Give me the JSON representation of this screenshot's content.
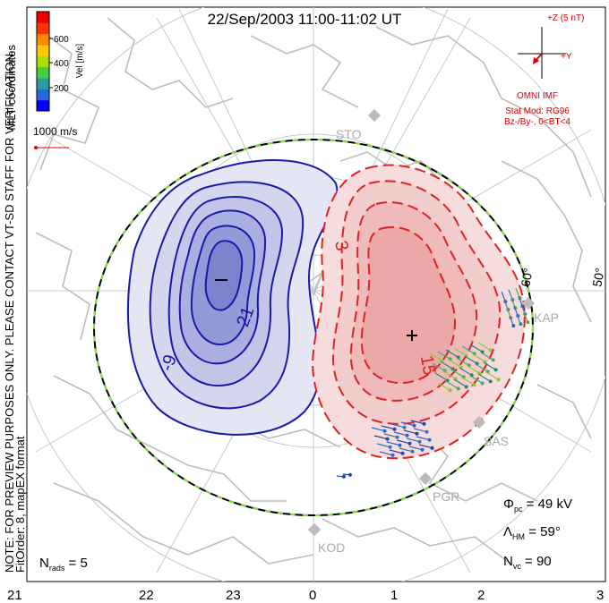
{
  "title": "22/Sep/2003 11:00-11:02 UT",
  "coords_label": "MLT coordinates",
  "preview_note": "NOTE: FOR PREVIEW PURPOSES ONLY. PLEASE CONTACT VT-SD STAFF FOR VERIFICATION.",
  "fit_note": "FitOrder: 8, mapEX format",
  "colorbar": {
    "label": "Vel [m/s]",
    "ticks": [
      "600",
      "400",
      "200"
    ],
    "colors": [
      "#0000ff",
      "#2a6ad8",
      "#2aa098",
      "#44cc44",
      "#aadd00",
      "#ffcc00",
      "#ff8800",
      "#ff3300",
      "#ee0000"
    ]
  },
  "scale": {
    "label": "1000 m/s",
    "color": "#dd0000"
  },
  "imf": {
    "z_label": "+Z (5 nT)",
    "y_label": "+Y",
    "source": "OMNI IMF",
    "model_line1": "Stat Mod: RG96",
    "model_line2": "Bz-/By-, 0<BT<4"
  },
  "latitude_labels": [
    "60°",
    "50°"
  ],
  "mlt_labels": [
    "21",
    "22",
    "23",
    "0",
    "1",
    "2",
    "3"
  ],
  "stations": [
    "STO",
    "KAP",
    "SAS",
    "PGR",
    "KOD"
  ],
  "contours": {
    "negative_labels": [
      "-9",
      "-21"
    ],
    "positive_labels": [
      "3",
      "15"
    ],
    "negative_color": "#1a1aa8",
    "positive_color": "#dd2222"
  },
  "stats": {
    "phi_pc": "49 kV",
    "lambda_hm": "59°",
    "n_vc": "90",
    "n_rads": "5"
  }
}
